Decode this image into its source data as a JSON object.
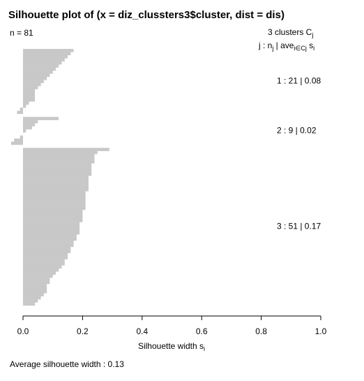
{
  "chart_data": {
    "type": "silhouette",
    "title": "Silhouette plot of (x = diz_clussters3$cluster, dist = dis)",
    "n_label": "n = 81",
    "legend_title": [
      "3  clusters  C",
      "j"
    ],
    "legend_header": [
      "j :  n",
      "j",
      " | ave",
      "i∈Cj",
      " s",
      "i"
    ],
    "xlabel": [
      "Silhouette width s",
      "i"
    ],
    "footer": "Average silhouette width :  0.13",
    "xlim": [
      -0.05,
      1.05
    ],
    "xticks": [
      {
        "value": 0,
        "label": "0.0"
      },
      {
        "value": 0.2,
        "label": "0.2"
      },
      {
        "value": 0.4,
        "label": "0.4"
      },
      {
        "value": 0.6,
        "label": "0.6"
      },
      {
        "value": 0.8,
        "label": "0.8"
      },
      {
        "value": 1,
        "label": "1.0"
      }
    ],
    "series": [
      {
        "name": "1 :  21 | 0.08",
        "color": "#c8c8c8",
        "values": [
          0.17,
          0.16,
          0.15,
          0.14,
          0.13,
          0.12,
          0.11,
          0.1,
          0.09,
          0.08,
          0.07,
          0.06,
          0.05,
          0.04,
          0.04,
          0.04,
          0.04,
          0.02,
          0.01,
          -0.01,
          -0.02
        ]
      },
      {
        "name": "2 :  9 | 0.02",
        "color": "#c8c8c8",
        "values": [
          0.12,
          0.05,
          0.04,
          0.03,
          0.01,
          0,
          -0.01,
          -0.03,
          -0.04
        ]
      },
      {
        "name": "3 :  51 | 0.17",
        "color": "#c8c8c8",
        "values": [
          0.29,
          0.25,
          0.24,
          0.24,
          0.24,
          0.23,
          0.23,
          0.23,
          0.23,
          0.22,
          0.22,
          0.22,
          0.22,
          0.22,
          0.21,
          0.21,
          0.21,
          0.21,
          0.21,
          0.21,
          0.2,
          0.2,
          0.2,
          0.2,
          0.19,
          0.19,
          0.19,
          0.19,
          0.18,
          0.18,
          0.17,
          0.17,
          0.16,
          0.16,
          0.15,
          0.15,
          0.14,
          0.14,
          0.13,
          0.12,
          0.11,
          0.1,
          0.09,
          0.09,
          0.08,
          0.08,
          0.08,
          0.07,
          0.06,
          0.05,
          0.04
        ]
      }
    ]
  }
}
